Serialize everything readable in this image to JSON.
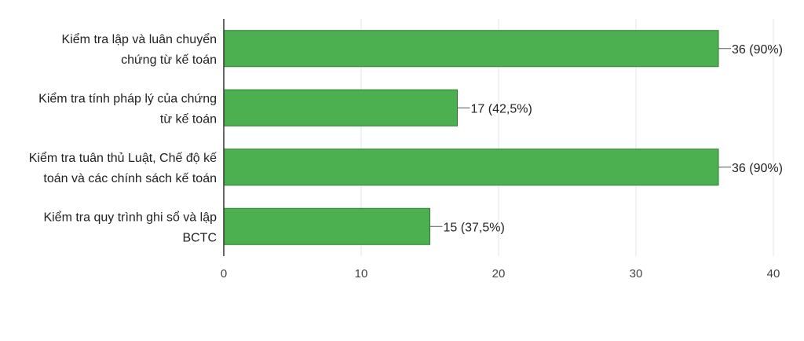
{
  "chart_data": {
    "type": "bar",
    "orientation": "horizontal",
    "categories": [
      [
        "Kiểm tra lập và luân chuyển",
        "chứng từ kế toán"
      ],
      [
        "Kiểm tra tính pháp lý của chứng",
        "từ kế toán"
      ],
      [
        "Kiểm tra tuân thủ Luật, Chế độ kế",
        "toán và các chính sách kế toán"
      ],
      [
        "Kiểm tra quy trình ghi sổ và lập",
        "BCTC"
      ]
    ],
    "values": [
      36,
      17,
      36,
      15
    ],
    "data_labels": [
      "36 (90%)",
      "17 (42,5%)",
      "36 (90%)",
      "15 (37,5%)"
    ],
    "xlim": [
      0,
      40
    ],
    "x_ticks": [
      "0",
      "10",
      "20",
      "30",
      "40"
    ],
    "grid": true,
    "colors": {
      "bar": "#4caf50",
      "bar_stroke": "#2e7d32",
      "grid": "#e6e6e6",
      "axis": "#333333"
    }
  }
}
